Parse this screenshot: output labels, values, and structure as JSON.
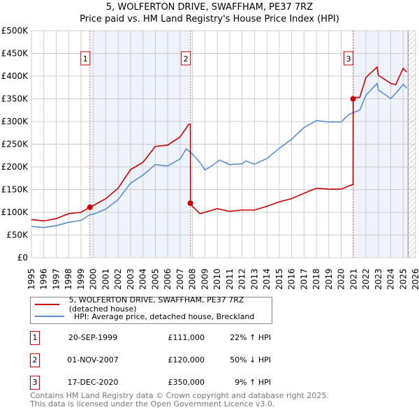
{
  "title": "5, WOLFERTON DRIVE, SWAFFHAM, PE37 7RZ",
  "subtitle": "Price paid vs. HM Land Registry's House Price Index (HPI)",
  "chart_data": {
    "type": "line",
    "title": "5, WOLFERTON DRIVE, SWAFFHAM, PE37 7RZ",
    "xlim": [
      1995,
      2026
    ],
    "ylim": [
      0,
      500000
    ],
    "yticks": [
      {
        "v": 0,
        "label": "£0"
      },
      {
        "v": 50000,
        "label": "£50K"
      },
      {
        "v": 100000,
        "label": "£100K"
      },
      {
        "v": 150000,
        "label": "£150K"
      },
      {
        "v": 200000,
        "label": "£200K"
      },
      {
        "v": 250000,
        "label": "£250K"
      },
      {
        "v": 300000,
        "label": "£300K"
      },
      {
        "v": 350000,
        "label": "£350K"
      },
      {
        "v": 400000,
        "label": "£400K"
      },
      {
        "v": 450000,
        "label": "£450K"
      },
      {
        "v": 500000,
        "label": "£500K"
      }
    ],
    "xticks": [
      "1995",
      "1996",
      "1997",
      "1998",
      "1999",
      "2000",
      "2001",
      "2002",
      "2003",
      "2004",
      "2005",
      "2006",
      "2007",
      "2008",
      "2009",
      "2010",
      "2011",
      "2012",
      "2013",
      "2014",
      "2015",
      "2016",
      "2017",
      "2018",
      "2019",
      "2020",
      "2021",
      "2022",
      "2023",
      "2024",
      "2025",
      "2026"
    ],
    "grid": true,
    "series": [
      {
        "name": "5, WOLFERTON DRIVE, SWAFFHAM, PE37 7RZ (detached house)",
        "color": "#cc0000",
        "points": [
          [
            1995,
            84000
          ],
          [
            1996,
            81000
          ],
          [
            1997,
            86000
          ],
          [
            1998,
            97000
          ],
          [
            1999,
            100000
          ],
          [
            1999.72,
            111000
          ],
          [
            2000,
            115000
          ],
          [
            2001,
            130000
          ],
          [
            2002,
            153000
          ],
          [
            2003,
            194000
          ],
          [
            2004,
            210000
          ],
          [
            2005,
            245000
          ],
          [
            2006,
            248000
          ],
          [
            2007,
            266000
          ],
          [
            2007.7,
            294000
          ],
          [
            2007.83,
            294000
          ],
          [
            2007.84,
            120000
          ],
          [
            2008,
            113000
          ],
          [
            2008.6,
            97000
          ],
          [
            2009,
            100000
          ],
          [
            2010,
            108000
          ],
          [
            2011,
            102000
          ],
          [
            2012,
            105000
          ],
          [
            2013,
            105000
          ],
          [
            2014,
            113000
          ],
          [
            2015,
            123000
          ],
          [
            2016,
            130000
          ],
          [
            2017,
            142000
          ],
          [
            2018,
            153000
          ],
          [
            2019,
            151000
          ],
          [
            2020,
            151000
          ],
          [
            2020.9,
            161000
          ],
          [
            2020.96,
            161000
          ],
          [
            2020.97,
            350000
          ],
          [
            2021.2,
            353000
          ],
          [
            2021.5,
            353000
          ],
          [
            2022,
            397000
          ],
          [
            2022.9,
            420000
          ],
          [
            2023,
            402000
          ],
          [
            2024,
            384000
          ],
          [
            2024.4,
            381000
          ],
          [
            2025,
            417000
          ],
          [
            2025.3,
            409000
          ]
        ]
      },
      {
        "name": "HPI: Average price, detached house, Breckland",
        "color": "#5b8fd0",
        "points": [
          [
            1995,
            69000
          ],
          [
            1996,
            66500
          ],
          [
            1997,
            70500
          ],
          [
            1998,
            78000
          ],
          [
            1999,
            82000
          ],
          [
            1999.7,
            94700
          ],
          [
            2000,
            95700
          ],
          [
            2001,
            107000
          ],
          [
            2002,
            128000
          ],
          [
            2003,
            164000
          ],
          [
            2004,
            182000
          ],
          [
            2005,
            205000
          ],
          [
            2006,
            202000
          ],
          [
            2007,
            217500
          ],
          [
            2007.5,
            240000
          ],
          [
            2008,
            228000
          ],
          [
            2008.6,
            210000
          ],
          [
            2009,
            193000
          ],
          [
            2009.7,
            205000
          ],
          [
            2010.2,
            215000
          ],
          [
            2011,
            205000
          ],
          [
            2012,
            207000
          ],
          [
            2012.3,
            213000
          ],
          [
            2013,
            206000
          ],
          [
            2014,
            218500
          ],
          [
            2015,
            240500
          ],
          [
            2016,
            261000
          ],
          [
            2017,
            286600
          ],
          [
            2018,
            302000
          ],
          [
            2019,
            299000
          ],
          [
            2020,
            299000
          ],
          [
            2020.6,
            315000
          ],
          [
            2021,
            320000
          ],
          [
            2021.5,
            325000
          ],
          [
            2022,
            358000
          ],
          [
            2022.9,
            384000
          ],
          [
            2023,
            369500
          ],
          [
            2024,
            350600
          ],
          [
            2024.6,
            368000
          ],
          [
            2025,
            382000
          ],
          [
            2025.3,
            373600
          ]
        ]
      }
    ],
    "sales": [
      {
        "id": "1",
        "x": 1999.72,
        "y": 111000
      },
      {
        "id": "2",
        "x": 2007.83,
        "y": 120000
      },
      {
        "id": "3",
        "x": 2020.96,
        "y": 350000
      }
    ],
    "shaded_ranges": [
      [
        1999.72,
        2007.83
      ],
      [
        2020.96,
        2025.4
      ]
    ],
    "hatch_from": 2025.4,
    "legend_placement": "below"
  },
  "legend": [
    {
      "label": "5, WOLFERTON DRIVE, SWAFFHAM, PE37 7RZ (detached house)",
      "color": "#cc0000"
    },
    {
      "label": "HPI: Average price, detached house, Breckland",
      "color": "#5b8fd0"
    }
  ],
  "transactions": [
    {
      "num": "1",
      "date": "20-SEP-1999",
      "price": "£111,000",
      "hpi": "22% ↑ HPI"
    },
    {
      "num": "2",
      "date": "01-NOV-2007",
      "price": "£120,000",
      "hpi": "50% ↓ HPI"
    },
    {
      "num": "3",
      "date": "17-DEC-2020",
      "price": "£350,000",
      "hpi": "9% ↑ HPI"
    }
  ],
  "footer": [
    "Contains HM Land Registry data © Crown copyright and database right 2025.",
    "This data is licensed under the Open Government Licence v3.0."
  ]
}
